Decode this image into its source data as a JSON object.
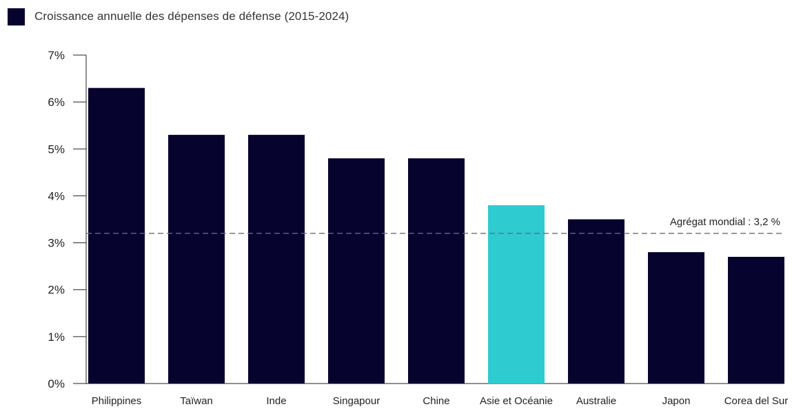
{
  "chart_data": {
    "type": "bar",
    "title": "",
    "xlabel": "",
    "ylabel": "",
    "legend": {
      "placement": "top-left",
      "entries": [
        {
          "label": "Croissance annuelle des dépenses de défense (2015-2024)",
          "color": "#06042f"
        }
      ]
    },
    "categories": [
      "Philippines",
      "Taïwan",
      "Inde",
      "Singapour",
      "Chine",
      "Asie et Océanie",
      "Australie",
      "Japon",
      "Corea del Sur"
    ],
    "series": [
      {
        "values": [
          6.3,
          5.3,
          5.3,
          4.8,
          4.8,
          3.8,
          3.5,
          2.8,
          2.7
        ],
        "color": "#06042f",
        "highlight_index": 5,
        "highlight_color": "#2ecbd1"
      }
    ],
    "ylim": [
      0,
      7
    ],
    "yticks": [
      0,
      1,
      2,
      3,
      4,
      5,
      6,
      7
    ],
    "ytick_labels": [
      "0%",
      "1%",
      "2%",
      "3%",
      "4%",
      "5%",
      "6%",
      "7%"
    ],
    "grid": false,
    "reference_line": {
      "value": 3.2,
      "label": "Agrégat mondial : 3,2 %",
      "style": "dashed",
      "color": "#6b6b6b"
    }
  }
}
